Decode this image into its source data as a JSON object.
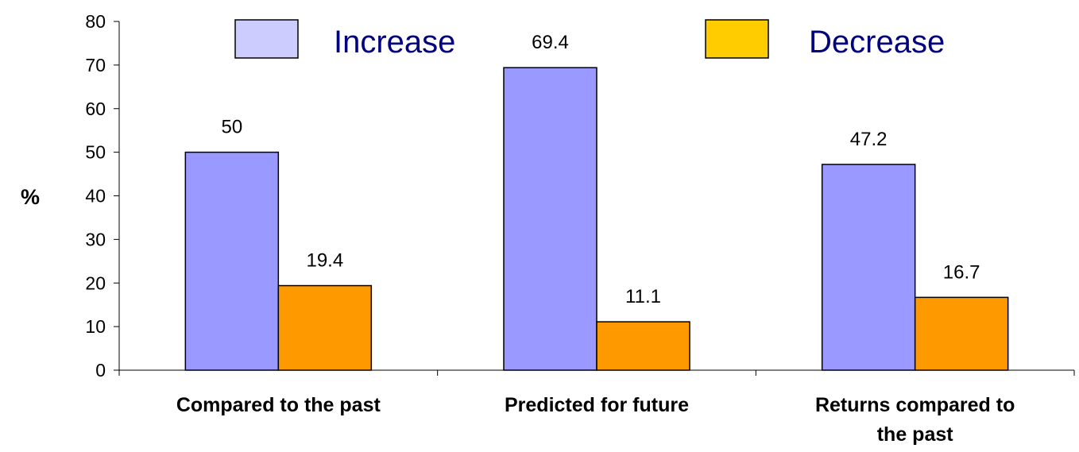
{
  "chart_data": {
    "type": "bar",
    "ylabel": "%",
    "xlabel": "",
    "ylim": [
      0,
      80
    ],
    "yticks": [
      "0",
      "10",
      "20",
      "30",
      "40",
      "50",
      "60",
      "70",
      "80"
    ],
    "categories": [
      [
        "Compared to the past"
      ],
      [
        "Predicted for future"
      ],
      [
        "Returns compared to",
        "the past"
      ]
    ],
    "series": [
      {
        "name": "Increase",
        "color": "#9999ff",
        "legend_color": "#ccccff",
        "values": [
          50,
          69.4,
          47.2
        ],
        "labels": [
          "50",
          "69.4",
          "47.2"
        ]
      },
      {
        "name": "Decrease",
        "color": "#ff9900",
        "legend_color": "#ffcc00",
        "values": [
          19.4,
          11.1,
          16.7
        ],
        "labels": [
          "19.4",
          "11.1",
          "16.7"
        ]
      }
    ],
    "legend_position": "top",
    "grid": false
  }
}
